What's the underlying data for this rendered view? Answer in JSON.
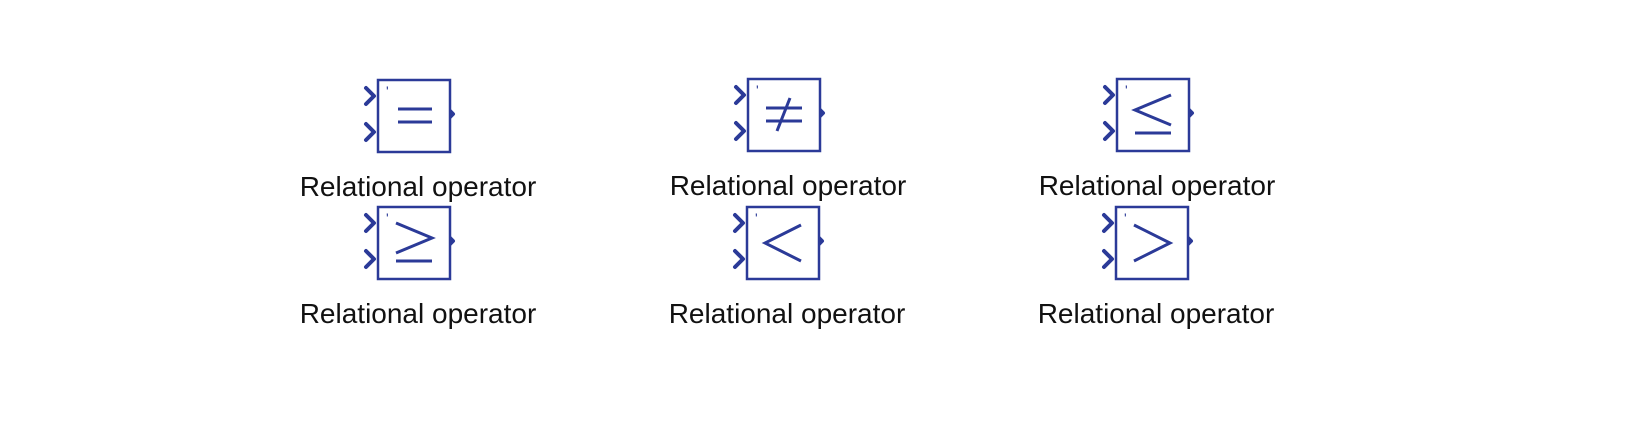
{
  "colors": {
    "block": "#2b3a98",
    "label": "#111111",
    "background": "#ffffff"
  },
  "blocks": [
    {
      "operator": "=",
      "symbol_icon": "equal-icon",
      "tick": "'",
      "label": "Relational operator"
    },
    {
      "operator": "≠",
      "symbol_icon": "not-equal-icon",
      "tick": "'",
      "label": "Relational operator"
    },
    {
      "operator": "≤",
      "symbol_icon": "less-than-or-equal-icon",
      "tick": "'",
      "label": "Relational operator"
    },
    {
      "operator": "≥",
      "symbol_icon": "greater-than-or-equal-icon",
      "tick": "'",
      "label": "Relational operator"
    },
    {
      "operator": "<",
      "symbol_icon": "less-than-icon",
      "tick": "'",
      "label": "Relational operator"
    },
    {
      "operator": ">",
      "symbol_icon": "greater-than-icon",
      "tick": "'",
      "label": "Relational operator"
    }
  ]
}
